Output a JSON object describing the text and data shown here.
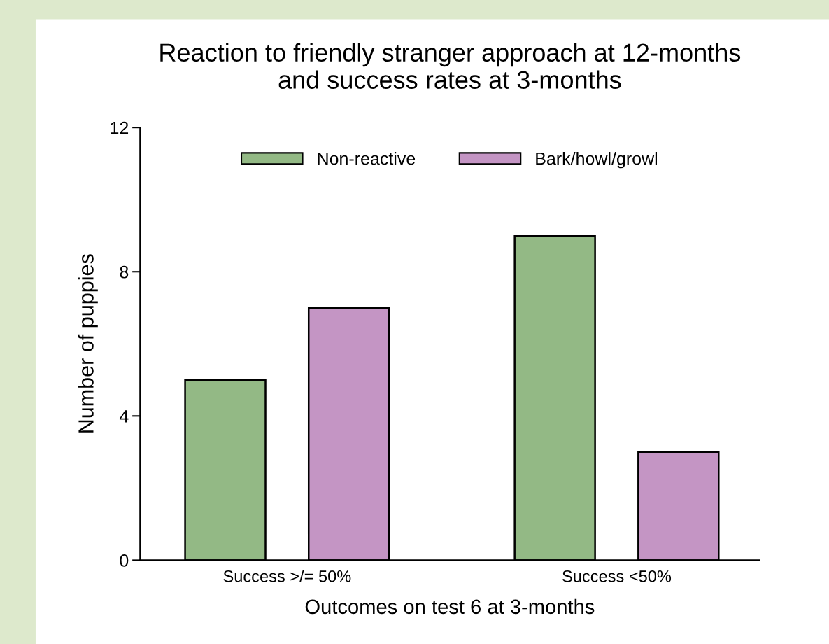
{
  "chart_data": {
    "type": "bar",
    "title": "Reaction to friendly stranger approach at 12-months\nand success rates at 3-months",
    "xlabel": "Outcomes on test 6 at 3-months",
    "ylabel": "Number of puppies",
    "categories": [
      "Success >/= 50%",
      "Success <50%"
    ],
    "series": [
      {
        "name": "Non-reactive",
        "color": "#93b985",
        "values": [
          5,
          9
        ]
      },
      {
        "name": "Bark/howl/growl",
        "color": "#c495c4",
        "values": [
          7,
          3
        ]
      }
    ],
    "ylim": [
      0,
      12
    ],
    "yticks": [
      0,
      4,
      8,
      12
    ],
    "grid": false,
    "legend": "top"
  }
}
